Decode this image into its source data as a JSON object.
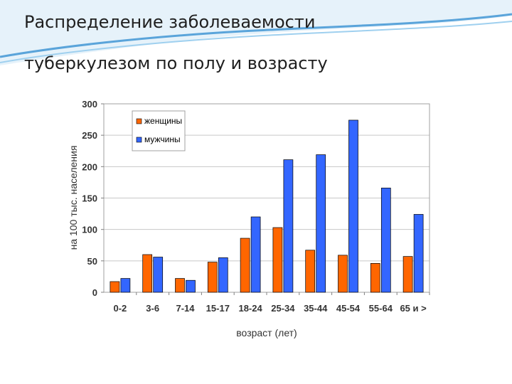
{
  "slide": {
    "title_line1": "Распределение заболеваемости",
    "title_line2": "туберкулезом  по полу и возрасту"
  },
  "chart_data": {
    "type": "bar",
    "title": "",
    "xlabel": "возраст (лет)",
    "ylabel": "на 100 тыс. населения",
    "ylim": [
      0,
      300
    ],
    "yticks": [
      0,
      50,
      100,
      150,
      200,
      250,
      300
    ],
    "grid": true,
    "legend_position": "top-left",
    "categories": [
      "0-2",
      "3-6",
      "7-14",
      "15-17",
      "18-24",
      "25-34",
      "35-44",
      "45-54",
      "55-64",
      "65 и >"
    ],
    "series": [
      {
        "name": "женщины",
        "color": "#ff6600",
        "values": [
          17,
          60,
          22,
          48,
          86,
          103,
          67,
          59,
          46,
          57
        ]
      },
      {
        "name": "мужчины",
        "color": "#3366ff",
        "values": [
          22,
          56,
          19,
          55,
          120,
          211,
          219,
          274,
          166,
          124
        ]
      }
    ]
  }
}
